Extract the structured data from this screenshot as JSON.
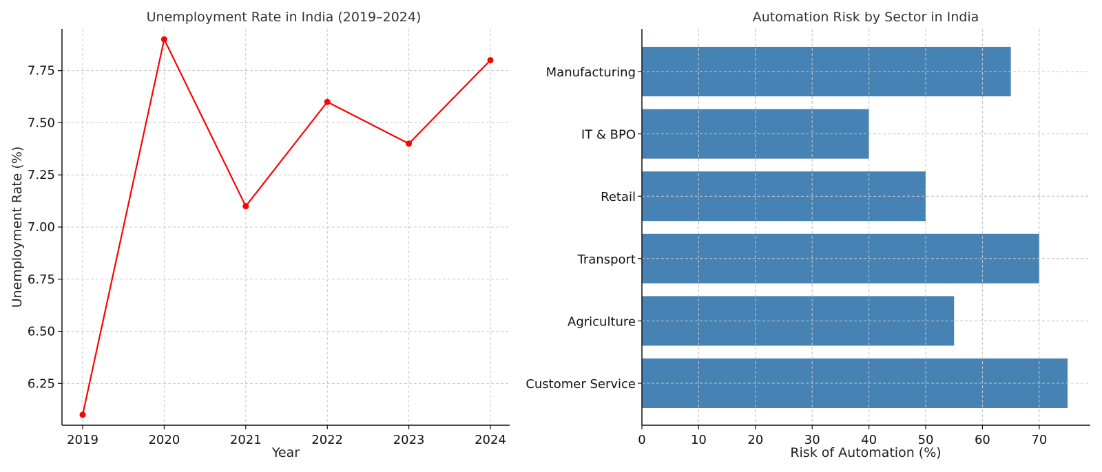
{
  "chart_data": [
    {
      "type": "line",
      "title": "Unemployment Rate in India (2019–2024)",
      "xlabel": "Year",
      "ylabel": "Unemployment Rate (%)",
      "x": [
        "2019",
        "2020",
        "2021",
        "2022",
        "2023",
        "2024"
      ],
      "series": [
        {
          "values": [
            6.1,
            7.9,
            7.1,
            7.6,
            7.4,
            7.8
          ],
          "color": "#ff0000"
        }
      ],
      "ylim": [
        6.05,
        7.95
      ],
      "yticks": [
        "6.25",
        "6.50",
        "6.75",
        "7.00",
        "7.25",
        "7.50",
        "7.75"
      ],
      "grid": true
    },
    {
      "type": "bar",
      "orientation": "horizontal",
      "title": "Automation Risk by Sector in India",
      "xlabel": "Risk of Automation (%)",
      "ylabel": "",
      "categories": [
        "Manufacturing",
        "IT & BPO",
        "Retail",
        "Transport",
        "Agriculture",
        "Customer Service"
      ],
      "values": [
        65,
        40,
        50,
        70,
        55,
        75
      ],
      "xlim": [
        0,
        79
      ],
      "xticks": [
        "0",
        "10",
        "20",
        "30",
        "40",
        "50",
        "60",
        "70"
      ],
      "color": "#4682b4",
      "grid": true
    }
  ]
}
